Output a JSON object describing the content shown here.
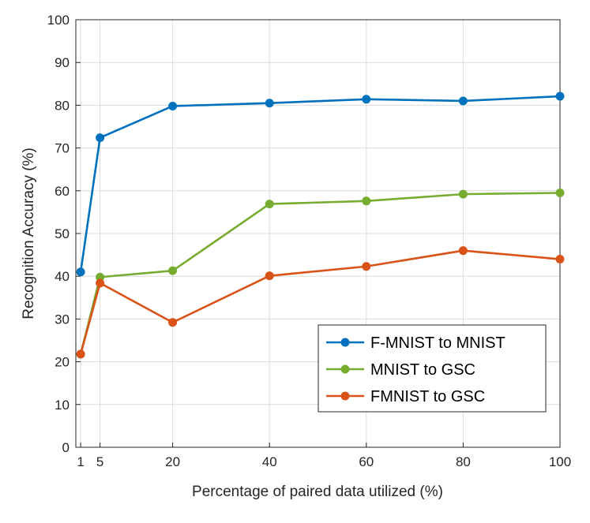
{
  "chart_data": {
    "type": "line",
    "title": "",
    "xlabel": "Percentage of paired data utilized (%)",
    "ylabel": "Recognition Accuracy (%)",
    "xlim": [
      0,
      100
    ],
    "ylim": [
      0,
      100
    ],
    "x_ticks": [
      1,
      5,
      20,
      40,
      60,
      80,
      100
    ],
    "x_tick_labels": [
      "1",
      "5",
      "20",
      "40",
      "60",
      "80",
      "100"
    ],
    "y_ticks": [
      0,
      10,
      20,
      30,
      40,
      50,
      60,
      70,
      80,
      90,
      100
    ],
    "y_tick_labels": [
      "0",
      "10",
      "20",
      "30",
      "40",
      "50",
      "60",
      "70",
      "80",
      "90",
      "100"
    ],
    "grid": true,
    "legend_position": "bottom-right",
    "x": [
      1,
      5,
      20,
      40,
      60,
      80,
      100
    ],
    "series": [
      {
        "name": "F-MNIST to MNIST",
        "color": "#0072BD",
        "values": [
          41.0,
          72.4,
          79.8,
          80.5,
          81.4,
          81.0,
          82.1
        ]
      },
      {
        "name": "MNIST to GSC",
        "color": "#77AC30",
        "values": [
          21.8,
          39.8,
          41.3,
          56.9,
          57.6,
          59.2,
          59.5
        ]
      },
      {
        "name": "FMNIST to GSC",
        "color": "#D95319",
        "values": [
          21.8,
          38.4,
          29.2,
          40.1,
          42.3,
          46.0,
          44.0
        ]
      }
    ]
  }
}
